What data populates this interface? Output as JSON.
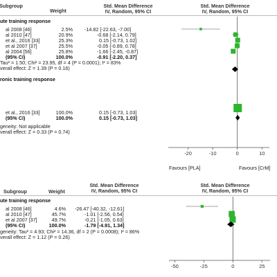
{
  "chart_data": [
    {
      "type": "forest",
      "headers": {
        "subgroup": "Subgroup",
        "weight": "Weight",
        "smd_title": "Std. Mean Difference",
        "smd_method": "IV, Random, 95% CI",
        "plot_title": "Std. Mean Difference",
        "plot_method": "IV, Random, 95% CI"
      },
      "groups": [
        {
          "title": "ute training response",
          "studies": [
            {
              "label": "al 2008 [46]",
              "weight_text": "2.5%",
              "ci_text": "-14.82 [-22.63, -7.00]",
              "est": -14.82,
              "lo": -22.63,
              "hi": -7.0,
              "weight": 2.5
            },
            {
              "label": "al 2010 [47]",
              "weight_text": "20.9%",
              "ci_text": "-0.68 [-2.14, 0.79]",
              "est": -0.68,
              "lo": -2.14,
              "hi": 0.79,
              "weight": 20.9
            },
            {
              "label": "et al., 2016 [33]",
              "weight_text": "25.3%",
              "ci_text": "0.15 [-0.73, 1.02]",
              "est": 0.15,
              "lo": -0.73,
              "hi": 1.02,
              "weight": 25.3
            },
            {
              "label": "et al 2007 [37]",
              "weight_text": "25.5%",
              "ci_text": "-0.05 [-0.89, 0.78]",
              "est": -0.05,
              "lo": -0.89,
              "hi": 0.78,
              "weight": 25.5
            },
            {
              "label": "al 2004 [56]",
              "weight_text": "25.8%",
              "ci_text": "-1.66 [-2.45, -0.87]",
              "est": -1.66,
              "lo": -2.45,
              "hi": -0.87,
              "weight": 25.8
            }
          ],
          "total": {
            "label": "(95% CI)",
            "weight_text": "100.0%",
            "ci_text": "-0.91 [-2.20, 0.37]",
            "est": -0.91,
            "lo": -2.2,
            "hi": 0.37
          },
          "heterogeneity": "Tau² = 1.50; Chi² = 23.95, df = 4 (P = 0.0001); I² = 83%",
          "overall": "verall effect: Z = 1.39 (P = 0.16)"
        },
        {
          "title": "ronic training response",
          "studies": [
            {
              "label": "et al., 2016 [33]",
              "weight_text": "100.0%",
              "ci_text": "0.15 [-0.73, 1.03]",
              "est": 0.15,
              "lo": -0.73,
              "hi": 1.03,
              "weight": 100.0
            }
          ],
          "total": {
            "label": "(95% CI)",
            "weight_text": "100.0%",
            "ci_text": "0.15 [-0.73, 1.03]",
            "est": 0.15,
            "lo": -0.73,
            "hi": 1.03
          },
          "heterogeneity": "geneity: Not applicable",
          "overall": "verall effect: Z = 0.33 (P = 0.74)"
        }
      ],
      "axis": {
        "ticks": [
          -20,
          -10,
          0,
          10
        ],
        "tick_labels": [
          "-20",
          "-10",
          "0",
          "10"
        ],
        "xlim": [
          -28,
          13
        ]
      },
      "favours_left": "Favours [PLA]",
      "favours_right": "Favours [CrM]"
    },
    {
      "type": "forest",
      "headers": {
        "subgroup": "Subgroup",
        "weight": "Weight",
        "smd_title": "Std. Mean Difference",
        "smd_method": "IV, Random, 95% CI",
        "plot_title": "Std. Mean Difference",
        "plot_method": "IV, Random, 95% CI"
      },
      "groups": [
        {
          "title": "ute training response",
          "studies": [
            {
              "label": "al 2008 [46]",
              "weight_text": "4.6%",
              "ci_text": "-26.47 [-40.32, -12.61]",
              "est": -26.47,
              "lo": -40.32,
              "hi": -12.61,
              "weight": 4.6
            },
            {
              "label": "al 2010 [47]",
              "weight_text": "45.7%",
              "ci_text": "-1.01 [-2.56, 0.54]",
              "est": -1.01,
              "lo": -2.56,
              "hi": 0.54,
              "weight": 45.7
            },
            {
              "label": "et al 2007 [37]",
              "weight_text": "49.7%",
              "ci_text": "-0.21 [-1.05, 0.63]",
              "est": -0.21,
              "lo": -1.05,
              "hi": 0.63,
              "weight": 49.7
            }
          ],
          "total": {
            "label": "(95% CI)",
            "weight_text": "100.0%",
            "ci_text": "-1.79 [-4.91, 1.34]",
            "est": -1.79,
            "lo": -4.91,
            "hi": 1.34
          },
          "heterogeneity": "geneity: Tau² = 4.93; Chi² = 14.36, df = 2 (P = 0.0008); I² = 86%",
          "overall": "verall effect: Z = 1.12 (P = 0.26)"
        }
      ],
      "axis": {
        "ticks": [
          -50,
          -25,
          0,
          25
        ],
        "tick_labels": [
          "-50",
          "-25",
          "0",
          "25"
        ],
        "xlim": [
          -55,
          32
        ]
      },
      "favours_left": "",
      "favours_right": ""
    }
  ],
  "colors": {
    "marker": "#2db52d",
    "diamond": "#000000",
    "ci_line": "#888888",
    "text": "#222222"
  }
}
